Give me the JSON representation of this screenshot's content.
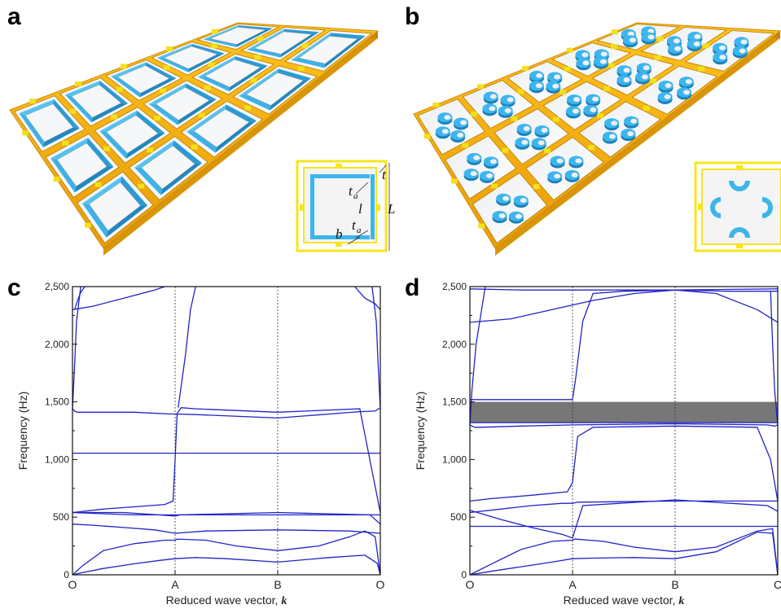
{
  "panels": {
    "a": "a",
    "b": "b",
    "c": "c",
    "d": "d"
  },
  "inset_a_labels": {
    "t": "t",
    "ta1": "t",
    "ta1_sub": "a",
    "l": "l",
    "L": "L",
    "ta2": "t",
    "ta2_sub": "a",
    "b": "b"
  },
  "colors": {
    "frame": "#FBB40A",
    "frame_dark": "#D9950A",
    "inner_square": "#2FA8E0",
    "link": "#F3E01A",
    "band_line": "#2222C8",
    "bandgap": "#777777"
  },
  "chart_data": [
    {
      "id": "c",
      "type": "line",
      "xlabel": "Reduced wave vector, ",
      "xlabel_k": "k",
      "ylabel": "Frequency (Hz)",
      "ylim": [
        0,
        2500
      ],
      "yticks": [
        0,
        500,
        1000,
        1500,
        2000,
        2500
      ],
      "ytick_labels": [
        "0",
        "500",
        "1,000",
        "1,500",
        "2,000",
        "2,500"
      ],
      "xticks": [
        0,
        1,
        2,
        3
      ],
      "xtick_labels": [
        "O",
        "A",
        "B",
        "O"
      ],
      "bandgap": null,
      "series": [
        {
          "x": [
            0,
            0.1,
            0.3,
            0.6,
            0.85,
            1.0,
            1.2,
            1.5,
            2.0,
            2.5,
            2.85,
            2.97,
            3.0
          ],
          "y": [
            0,
            20,
            55,
            95,
            125,
            140,
            150,
            140,
            110,
            150,
            170,
            100,
            0
          ]
        },
        {
          "x": [
            0,
            0.1,
            0.3,
            0.6,
            0.9,
            1.0,
            1.02,
            1.3,
            1.6,
            2.0,
            2.4,
            2.7,
            2.85,
            2.95,
            3.0
          ],
          "y": [
            0,
            80,
            210,
            270,
            300,
            300,
            310,
            300,
            250,
            210,
            250,
            330,
            380,
            330,
            0
          ]
        },
        {
          "x": [
            0,
            0.2,
            0.5,
            0.8,
            1.0,
            1.3,
            2.0,
            2.7,
            3.0
          ],
          "y": [
            440,
            430,
            410,
            390,
            360,
            380,
            390,
            380,
            360
          ]
        },
        {
          "x": [
            0,
            0.3,
            0.6,
            0.95,
            1.0,
            1.05,
            1.5,
            2.0,
            2.5,
            2.9,
            3.0
          ],
          "y": [
            540,
            530,
            520,
            520,
            520,
            520,
            520,
            520,
            520,
            520,
            520
          ]
        },
        {
          "x": [
            0,
            0.5,
            1.0,
            1.05,
            2.0,
            2.9,
            3.0
          ],
          "y": [
            540,
            540,
            510,
            520,
            540,
            520,
            440
          ]
        },
        {
          "x": [
            0,
            0.3,
            0.6,
            0.9,
            0.98,
            1.0,
            1.02,
            1.06,
            1.2,
            2.0,
            2.8,
            2.92,
            3.0
          ],
          "y": [
            540,
            570,
            590,
            610,
            640,
            1000,
            1400,
            1450,
            1440,
            1410,
            1440,
            900,
            540
          ]
        },
        {
          "x": [
            0,
            1,
            2,
            3
          ],
          "y": [
            1055,
            1055,
            1055,
            1055
          ]
        },
        {
          "x": [
            0,
            0.02,
            0.05,
            0.2,
            0.6,
            0.95,
            1.0,
            1.2,
            2.0,
            2.8,
            2.95,
            2.98,
            3.0
          ],
          "y": [
            1440,
            1420,
            1410,
            1410,
            1410,
            1395,
            1395,
            1390,
            1360,
            1415,
            1420,
            1440,
            1440
          ]
        },
        {
          "x": [
            0,
            0.02,
            0.04,
            0.08
          ],
          "y": [
            1440,
            1800,
            2200,
            2500
          ]
        },
        {
          "x": [
            2.92,
            2.96,
            2.98,
            3.0
          ],
          "y": [
            2500,
            2200,
            1800,
            1440
          ]
        },
        {
          "x": [
            0,
            0.2,
            0.5,
            0.8,
            0.9
          ],
          "y": [
            2300,
            2330,
            2400,
            2470,
            2500
          ]
        },
        {
          "x": [
            1.03,
            1.1,
            1.15,
            1.2
          ],
          "y": [
            1450,
            1900,
            2300,
            2500
          ]
        },
        {
          "x": [
            2.75,
            2.85,
            2.95,
            3.0
          ],
          "y": [
            2500,
            2400,
            2350,
            2300
          ]
        },
        {
          "x": [
            0.02,
            0.05,
            0.08,
            0.12
          ],
          "y": [
            2300,
            2380,
            2450,
            2500
          ]
        }
      ]
    },
    {
      "id": "d",
      "type": "line",
      "xlabel": "Reduced wave vector, ",
      "xlabel_k": "k",
      "ylabel": "Frequency (Hz)",
      "ylim": [
        0,
        2500
      ],
      "yticks": [
        0,
        500,
        1000,
        1500,
        2000,
        2500
      ],
      "ytick_labels": [
        "0",
        "500",
        "1,000",
        "1,500",
        "2,000",
        "2,500"
      ],
      "xticks": [
        0,
        1,
        2,
        3
      ],
      "xtick_labels": [
        "O",
        "A",
        "B",
        "C"
      ],
      "bandgap": [
        1320,
        1500
      ],
      "series": [
        {
          "x": [
            0,
            0.2,
            0.5,
            0.8,
            1.0,
            1.2,
            1.6,
            2.0,
            2.4,
            2.8,
            2.95,
            3.0
          ],
          "y": [
            0,
            30,
            70,
            110,
            140,
            145,
            150,
            140,
            200,
            370,
            360,
            0
          ]
        },
        {
          "x": [
            0,
            0.2,
            0.5,
            0.8,
            1.0,
            1.02,
            1.3,
            1.6,
            2.0,
            2.4,
            2.8,
            2.95,
            3.0
          ],
          "y": [
            0,
            90,
            220,
            290,
            300,
            310,
            290,
            240,
            200,
            240,
            380,
            400,
            0
          ]
        },
        {
          "x": [
            0,
            0.3,
            0.6,
            0.9,
            1.0,
            1.02,
            1.5,
            2.0,
            2.5,
            2.9,
            3.0
          ],
          "y": [
            420,
            420,
            420,
            420,
            420,
            420,
            420,
            420,
            420,
            420,
            420
          ]
        },
        {
          "x": [
            0,
            0.3,
            0.6,
            0.9,
            1.0,
            1.1,
            2.0,
            2.9,
            3.0
          ],
          "y": [
            560,
            480,
            410,
            350,
            320,
            600,
            650,
            600,
            550
          ]
        },
        {
          "x": [
            0,
            0.3,
            0.6,
            0.9,
            1.0,
            1.05,
            2.0,
            2.9,
            3.0
          ],
          "y": [
            540,
            570,
            600,
            620,
            620,
            630,
            640,
            640,
            640
          ]
        },
        {
          "x": [
            0,
            0.2,
            0.6,
            0.95,
            1.0,
            1.05,
            1.2,
            2.0,
            2.8,
            2.93,
            3.0
          ],
          "y": [
            640,
            660,
            690,
            720,
            800,
            1200,
            1280,
            1290,
            1280,
            1000,
            640
          ]
        },
        {
          "x": [
            0,
            0.02,
            0.05,
            0.1,
            0.5,
            1.0,
            2.0,
            2.9,
            2.97,
            3.0
          ],
          "y": [
            1300,
            1290,
            1280,
            1280,
            1290,
            1300,
            1310,
            1300,
            1290,
            1300
          ]
        },
        {
          "x": [
            0,
            0.5,
            1.0,
            2.0,
            3.0
          ],
          "y": [
            1320,
            1320,
            1320,
            1320,
            1320
          ]
        },
        {
          "x": [
            0,
            0.02,
            0.06,
            0.15
          ],
          "y": [
            1300,
            1600,
            2000,
            2500
          ]
        },
        {
          "x": [
            0,
            0.3,
            0.7,
            1.0,
            1.03,
            1.1,
            1.2,
            1.5,
            2.0,
            2.5,
            2.9,
            3.0
          ],
          "y": [
            1520,
            1520,
            1520,
            1520,
            1700,
            2200,
            2440,
            2460,
            2470,
            2460,
            2460,
            2460
          ]
        },
        {
          "x": [
            2.93,
            2.95,
            2.97,
            3.0
          ],
          "y": [
            2460,
            2000,
            1600,
            1300
          ]
        },
        {
          "x": [
            0,
            0.4,
            0.8,
            1.2,
            1.6,
            2.0,
            2.4,
            2.8,
            3.0
          ],
          "y": [
            2190,
            2220,
            2300,
            2380,
            2440,
            2470,
            2440,
            2300,
            2190
          ]
        },
        {
          "x": [
            0,
            0.5,
            1.0,
            2.0,
            3.0
          ],
          "y": [
            2480,
            2470,
            2470,
            2470,
            2480
          ]
        }
      ]
    }
  ]
}
